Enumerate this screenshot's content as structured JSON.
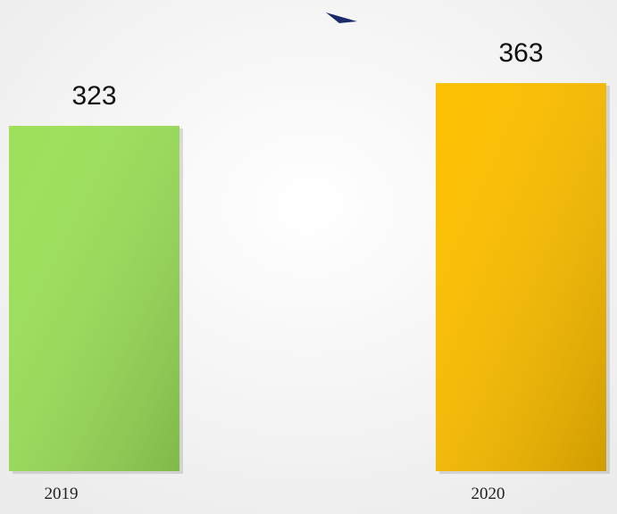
{
  "chart_data": {
    "type": "bar",
    "categories": [
      "2019",
      "2020"
    ],
    "values": [
      323,
      363
    ],
    "colors": [
      "#9de05a",
      "#fdbf00"
    ]
  }
}
